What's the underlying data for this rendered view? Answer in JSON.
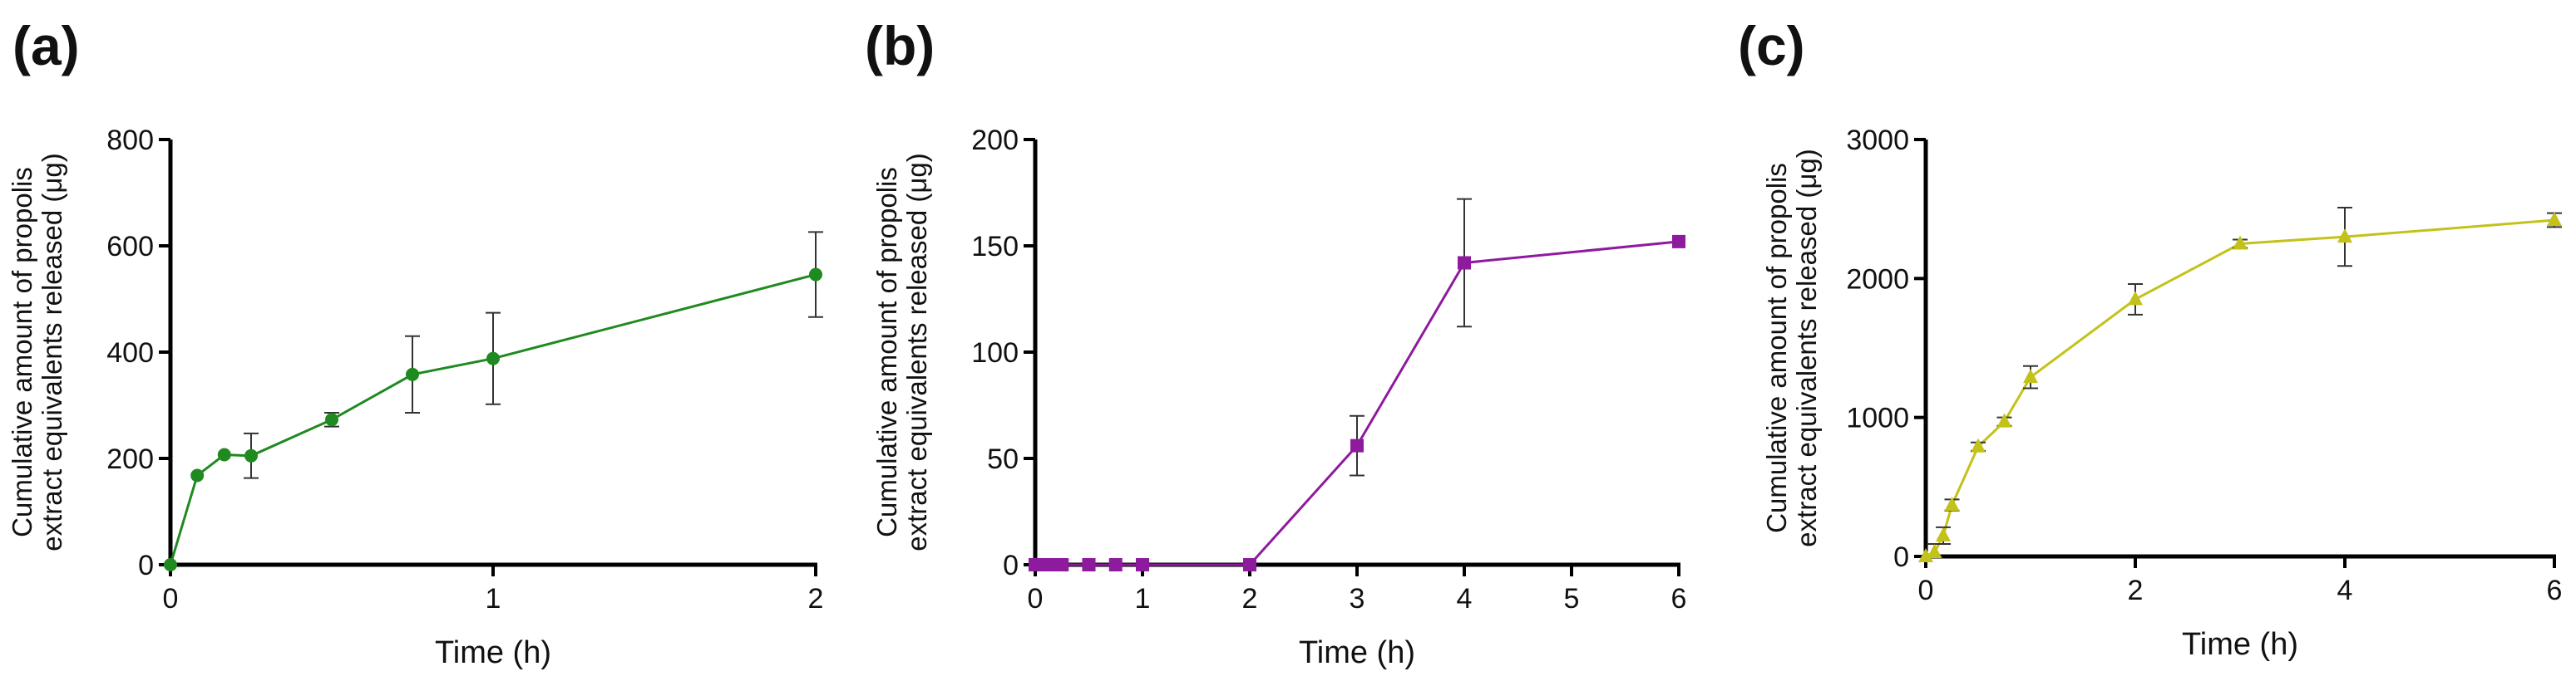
{
  "chart_data": [
    {
      "type": "line",
      "panel": "(a)",
      "xlabel": "Time (h)",
      "ylabel": [
        "Cumulative amount of propolis",
        "extract equivalents released (μg)"
      ],
      "xlim": [
        0,
        2
      ],
      "ylim": [
        0,
        800
      ],
      "xticks": [
        0,
        1,
        2
      ],
      "yticks": [
        0,
        200,
        400,
        600,
        800
      ],
      "color": "#1f8a1f",
      "marker": "circle",
      "series": [
        {
          "name": "(a)",
          "x": [
            0,
            0.083,
            0.167,
            0.25,
            0.5,
            0.75,
            1,
            2
          ],
          "y": [
            0,
            168,
            207,
            205,
            273,
            358,
            388,
            546
          ],
          "err": [
            0,
            0,
            0,
            42,
            13,
            72,
            86,
            80
          ]
        }
      ]
    },
    {
      "type": "line",
      "panel": "(b)",
      "xlabel": "Time (h)",
      "ylabel": [
        "Cumulative amount of propolis",
        "extract equivalents released (μg)"
      ],
      "xlim": [
        0,
        6
      ],
      "ylim": [
        0,
        200
      ],
      "xticks": [
        0,
        1,
        2,
        3,
        4,
        5,
        6
      ],
      "yticks": [
        0,
        50,
        100,
        150,
        200
      ],
      "color": "#8e1a9e",
      "marker": "square",
      "series": [
        {
          "name": "(b)",
          "x": [
            0,
            0.083,
            0.167,
            0.25,
            0.5,
            0.75,
            1,
            2,
            3,
            4,
            6
          ],
          "y": [
            0,
            0,
            0,
            0,
            0,
            0,
            0,
            0,
            56,
            142,
            152
          ],
          "err": [
            0,
            0,
            0,
            0,
            0,
            0,
            0,
            0,
            14,
            30,
            0
          ]
        }
      ]
    },
    {
      "type": "line",
      "panel": "(c)",
      "xlabel": "Time (h)",
      "ylabel": [
        "Cumulative amount of propolis",
        "extract equivalents released (μg)"
      ],
      "xlim": [
        0,
        6
      ],
      "ylim": [
        0,
        3000
      ],
      "xticks": [
        0,
        2,
        4,
        6
      ],
      "yticks": [
        0,
        1000,
        2000,
        3000
      ],
      "color": "#c2c21a",
      "marker": "triangle",
      "series": [
        {
          "name": "(c)",
          "x": [
            0,
            0.083,
            0.167,
            0.25,
            0.5,
            0.75,
            1,
            2,
            3,
            4,
            6
          ],
          "y": [
            0,
            30,
            150,
            370,
            790,
            970,
            1290,
            1850,
            2250,
            2300,
            2420
          ],
          "err": [
            0,
            60,
            60,
            40,
            30,
            30,
            80,
            110,
            30,
            210,
            50
          ]
        }
      ]
    }
  ]
}
